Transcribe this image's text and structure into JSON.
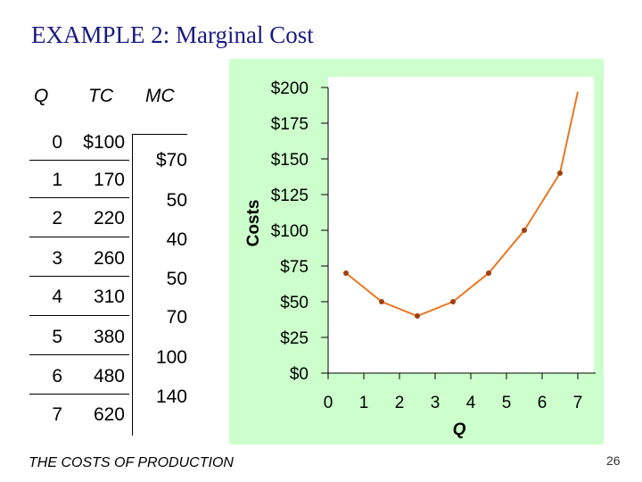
{
  "slide": {
    "title": "EXAMPLE 2:  Marginal Cost",
    "footer": "THE COSTS OF PRODUCTION",
    "page_number": "26"
  },
  "table": {
    "headers": {
      "q": "Q",
      "tc": "TC",
      "mc": "MC"
    },
    "rows": [
      {
        "q": "0",
        "tc": "$100"
      },
      {
        "q": "1",
        "tc": "170"
      },
      {
        "q": "2",
        "tc": "220"
      },
      {
        "q": "3",
        "tc": "260"
      },
      {
        "q": "4",
        "tc": "310"
      },
      {
        "q": "5",
        "tc": "380"
      },
      {
        "q": "6",
        "tc": "480"
      },
      {
        "q": "7",
        "tc": "620"
      }
    ],
    "mc_values": [
      "$70",
      "50",
      "40",
      "50",
      "70",
      "100",
      "140"
    ]
  },
  "chart_data": {
    "type": "line",
    "xlabel": "Q",
    "ylabel": "Costs",
    "xlim": [
      0,
      7
    ],
    "ylim": [
      0,
      200
    ],
    "x_ticks": [
      "0",
      "1",
      "2",
      "3",
      "4",
      "5",
      "6",
      "7"
    ],
    "y_ticks": [
      "$0",
      "$25",
      "$50",
      "$75",
      "$100",
      "$125",
      "$150",
      "$175",
      "$200"
    ],
    "y_tick_values": [
      0,
      25,
      50,
      75,
      100,
      125,
      150,
      175,
      200
    ],
    "points": [
      {
        "x": 0.5,
        "y": 70
      },
      {
        "x": 1.5,
        "y": 50
      },
      {
        "x": 2.5,
        "y": 40
      },
      {
        "x": 3.5,
        "y": 50
      },
      {
        "x": 4.5,
        "y": 70
      },
      {
        "x": 5.5,
        "y": 100
      },
      {
        "x": 6.5,
        "y": 140
      }
    ],
    "line_end": {
      "x": 7,
      "y": 197
    },
    "grid": false,
    "colors": {
      "line": "#e87722",
      "marker": "#a0400e",
      "background": "#ccffcc",
      "plot_area": "#ffffff"
    }
  }
}
